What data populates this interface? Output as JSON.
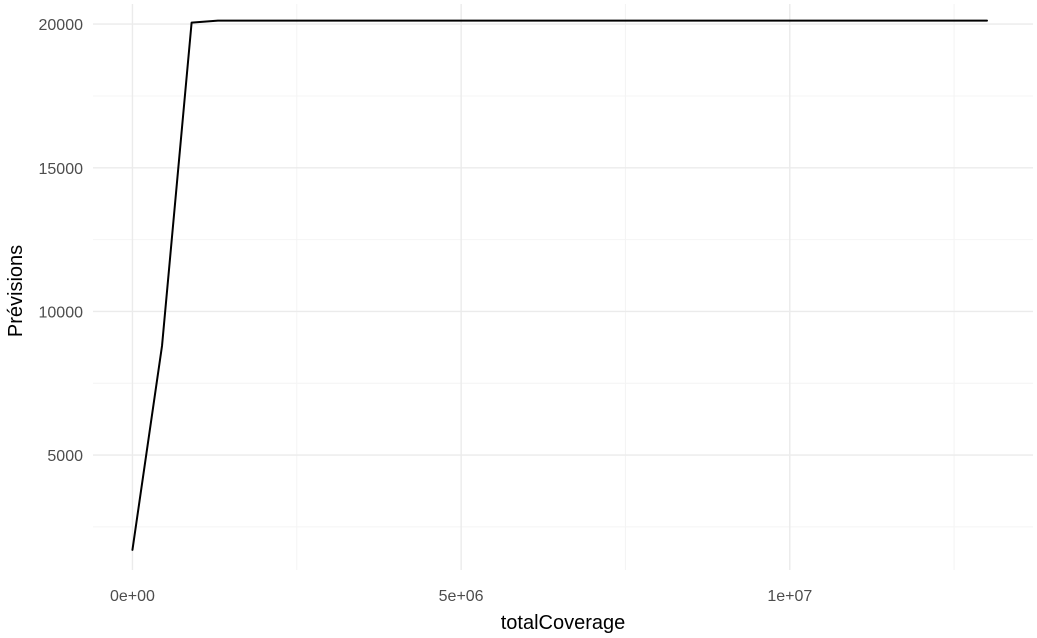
{
  "chart_data": {
    "type": "line",
    "xlabel": "totalCoverage",
    "ylabel": "Prévisions",
    "xlim": [
      -600000,
      13700000
    ],
    "ylim": [
      1000,
      20700
    ],
    "x_major_ticks": [
      0,
      5000000,
      10000000
    ],
    "x_tick_labels": [
      "0e+00",
      "5e+06",
      "1e+07"
    ],
    "x_minor_ticks": [
      2500000,
      7500000,
      12500000
    ],
    "y_major_ticks": [
      5000,
      10000,
      15000,
      20000
    ],
    "y_tick_labels": [
      "5000",
      "10000",
      "15000",
      "20000"
    ],
    "y_minor_ticks": [
      2500,
      7500,
      12500,
      17500
    ],
    "grid": true,
    "line_color": "#000000",
    "series": [
      {
        "x": [
          0,
          450000,
          900000,
          1300000,
          13000000
        ],
        "y": [
          1700,
          8800,
          20050,
          20120,
          20120
        ]
      }
    ]
  }
}
